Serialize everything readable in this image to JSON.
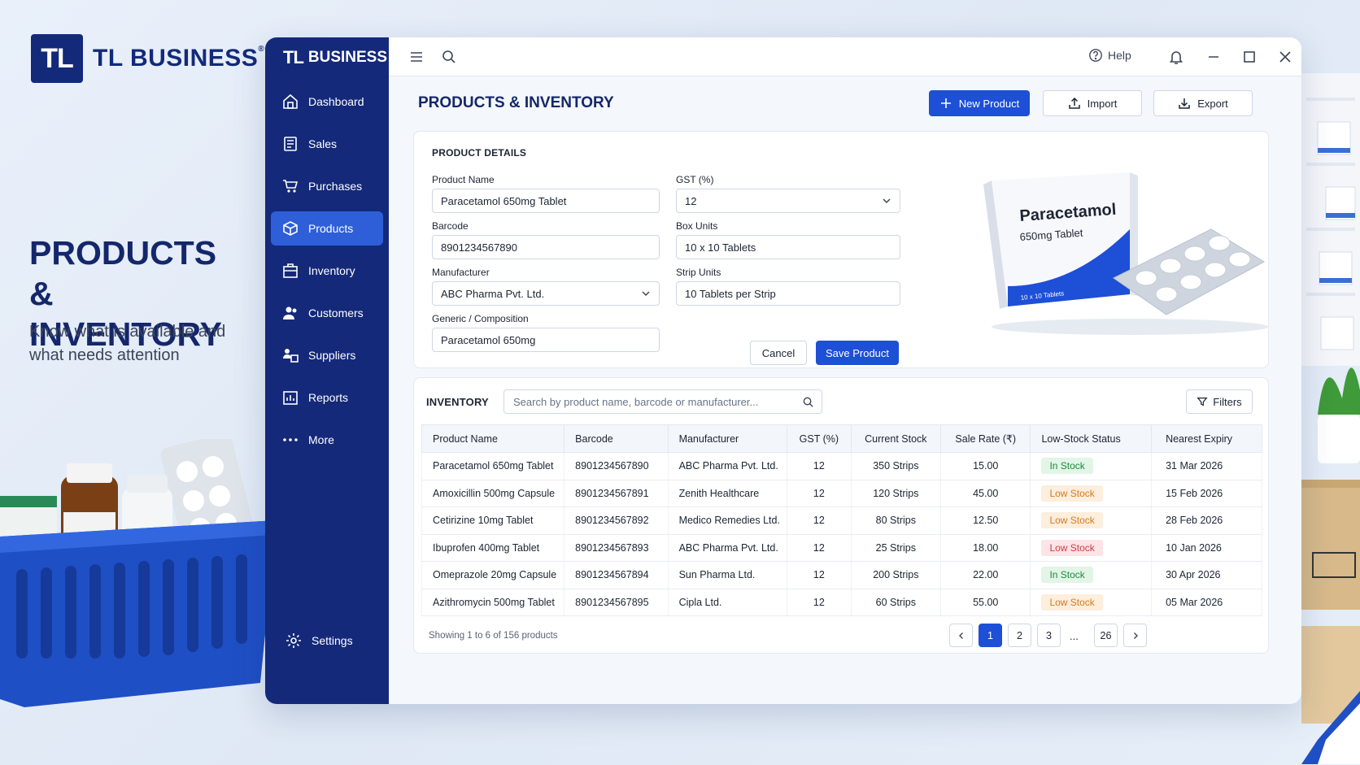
{
  "brand": {
    "logo_text": "TL",
    "name": "TL BUSINESS",
    "mark": "®"
  },
  "hero": {
    "title": "PRODUCTS & INVENTORY",
    "subtitle": "Know what is available and what needs attention"
  },
  "sidebar": {
    "logo_text": "TL",
    "brand_name": "BUSINESS",
    "items": [
      {
        "label": "Dashboard",
        "icon": "dashboard-icon"
      },
      {
        "label": "Sales",
        "icon": "sales-icon"
      },
      {
        "label": "Purchases",
        "icon": "cart-icon"
      },
      {
        "label": "Products",
        "icon": "box-icon",
        "active": true
      },
      {
        "label": "Inventory",
        "icon": "inventory-icon"
      },
      {
        "label": "Customers",
        "icon": "customers-icon"
      },
      {
        "label": "Suppliers",
        "icon": "suppliers-icon"
      },
      {
        "label": "Reports",
        "icon": "reports-icon"
      },
      {
        "label": "More",
        "icon": "more-icon"
      }
    ],
    "settings_label": "Settings"
  },
  "topbar": {
    "help_label": "Help"
  },
  "page": {
    "title": "PRODUCTS & INVENTORY",
    "new_product_label": "New Product",
    "import_label": "Import",
    "export_label": "Export"
  },
  "product_details": {
    "section_title": "PRODUCT DETAILS",
    "product_name_label": "Product Name",
    "product_name_value": "Paracetamol 650mg Tablet",
    "barcode_label": "Barcode",
    "barcode_value": "8901234567890",
    "manufacturer_label": "Manufacturer",
    "manufacturer_value": "ABC Pharma Pvt. Ltd.",
    "generic_label": "Generic / Composition",
    "generic_value": "Paracetamol 650mg",
    "gst_label": "GST (%)",
    "gst_value": "12",
    "box_units_label": "Box Units",
    "box_units_value": "10 x 10 Tablets",
    "strip_units_label": "Strip Units",
    "strip_units_value": "10 Tablets per Strip",
    "cancel_label": "Cancel",
    "save_label": "Save Product",
    "image": {
      "box_title": "Paracetamol",
      "box_sub": "650mg Tablet",
      "box_units": "10 x 10 Tablets"
    }
  },
  "inventory": {
    "section_title": "INVENTORY",
    "search_placeholder": "Search by product name, barcode or manufacturer...",
    "filters_label": "Filters",
    "columns": [
      "Product Name",
      "Barcode",
      "Manufacturer",
      "GST (%)",
      "Current Stock",
      "Sale Rate (₹)",
      "Low-Stock Status",
      "Nearest Expiry"
    ],
    "rows": [
      [
        "Paracetamol 650mg Tablet",
        "8901234567890",
        "ABC Pharma Pvt. Ltd.",
        "12",
        "350 Strips",
        "15.00",
        "In Stock",
        "31 Mar 2026"
      ],
      [
        "Amoxicillin 500mg Capsule",
        "8901234567891",
        "Zenith Healthcare",
        "12",
        "120 Strips",
        "45.00",
        "Low Stock",
        "15 Feb 2026"
      ],
      [
        "Cetirizine 10mg Tablet",
        "8901234567892",
        "Medico Remedies Ltd.",
        "12",
        "80 Strips",
        "12.50",
        "Low Stock",
        "28 Feb 2026"
      ],
      [
        "Ibuprofen 400mg Tablet",
        "8901234567893",
        "ABC Pharma Pvt. Ltd.",
        "12",
        "25 Strips",
        "18.00",
        "Low Stock",
        "10 Jan 2026"
      ],
      [
        "Omeprazole 20mg Capsule",
        "8901234567894",
        "Sun Pharma Ltd.",
        "12",
        "200 Strips",
        "22.00",
        "In Stock",
        "30 Apr 2026"
      ],
      [
        "Azithromycin 500mg Tablet",
        "8901234567895",
        "Cipla Ltd.",
        "12",
        "60 Strips",
        "55.00",
        "Low Stock",
        "05 Mar 2026"
      ]
    ],
    "status_styles": [
      "in",
      "low",
      "low",
      "crit",
      "in",
      "low"
    ],
    "status_colors": {
      "in": "#1e8a3d",
      "low": "#d77a1c",
      "crit": "#d23b47"
    },
    "showing_text": "Showing 1 to 6 of 156 products",
    "pages": [
      "1",
      "2",
      "3",
      "...",
      "26"
    ],
    "current_page": "1"
  },
  "colors": {
    "brand_navy": "#14297a",
    "primary": "#1d4fd7",
    "active_nav": "#2e5fd8"
  }
}
